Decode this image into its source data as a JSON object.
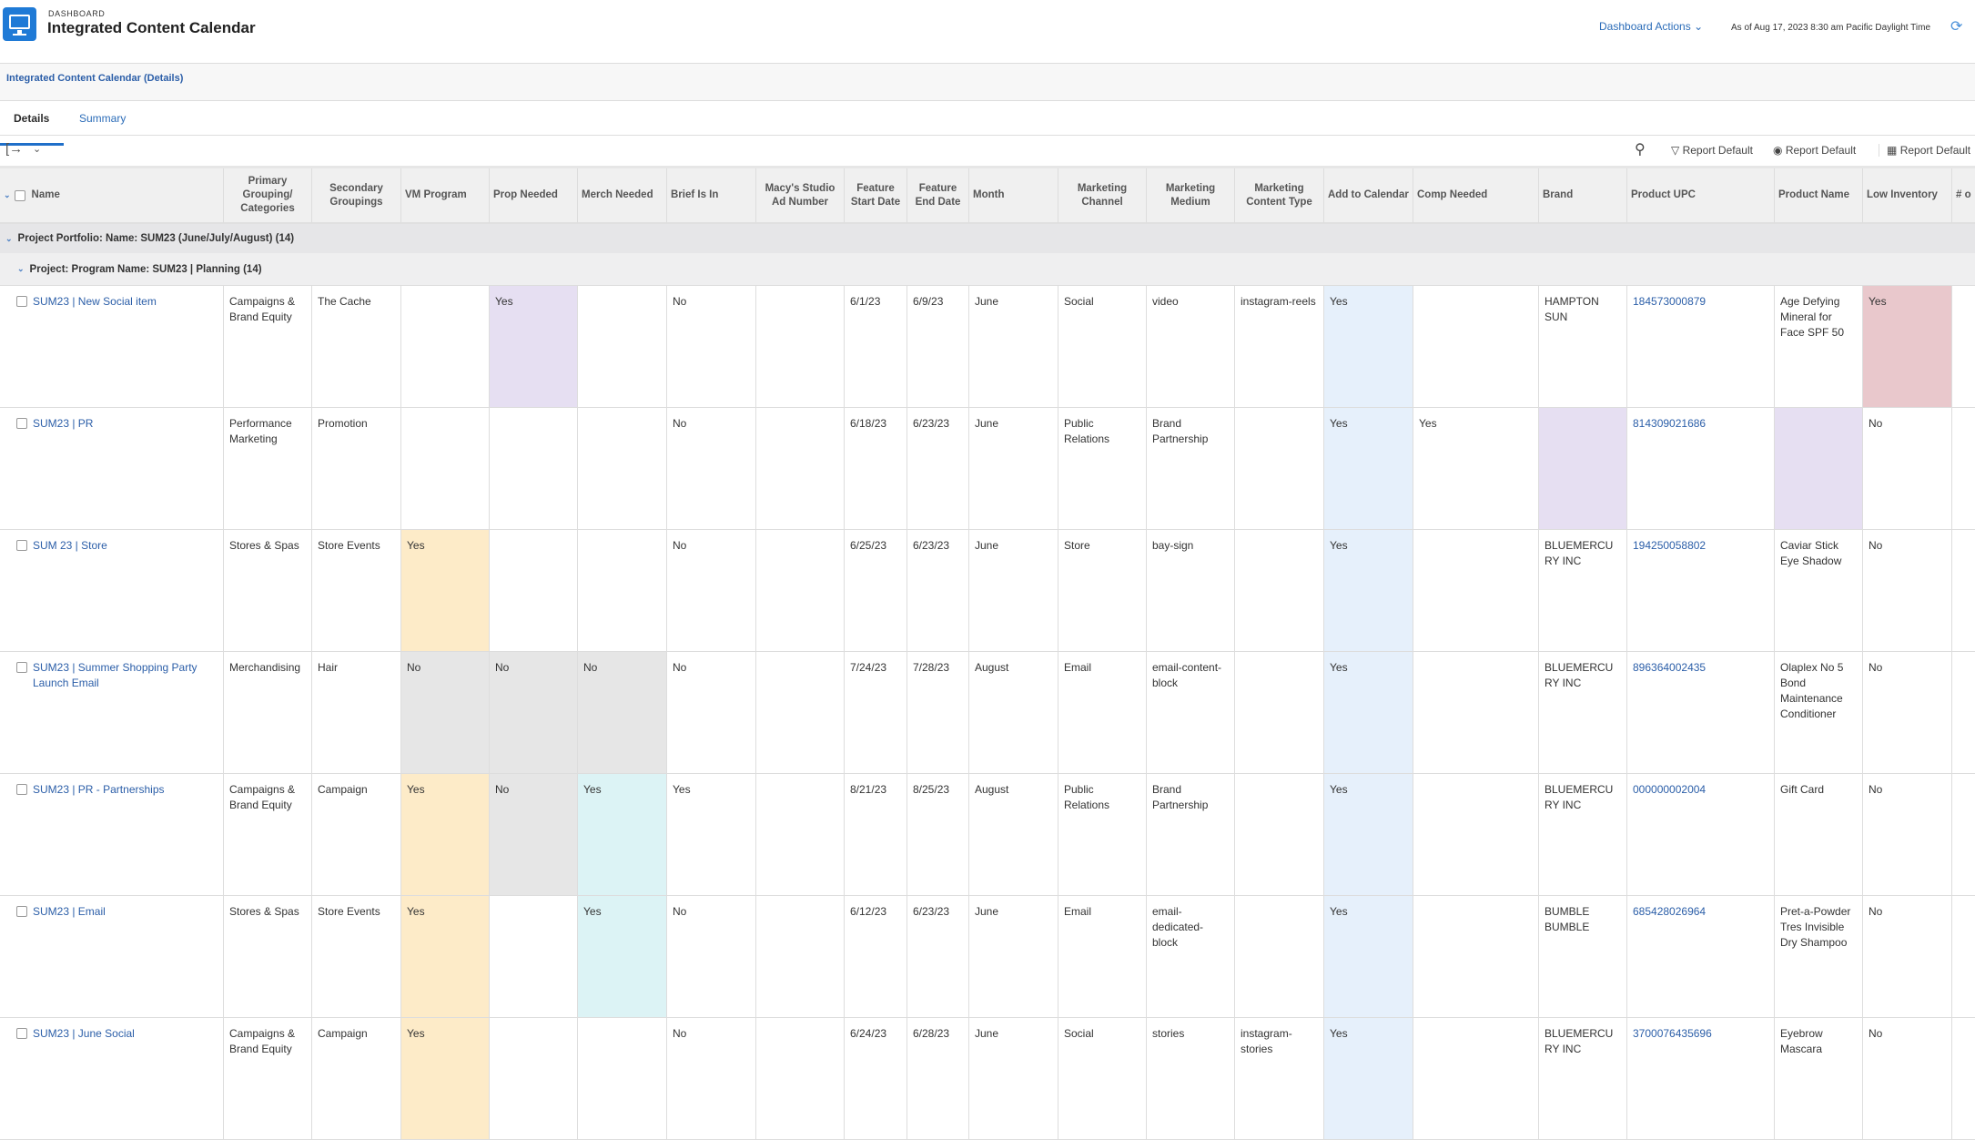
{
  "header": {
    "eyebrow": "DASHBOARD",
    "title": "Integrated Content Calendar",
    "actions_label": "Dashboard Actions",
    "as_of": "As of  Aug 17, 2023 8:30 am Pacific Daylight Time"
  },
  "breadcrumb": "Integrated Content Calendar (Details)",
  "tabs": [
    {
      "label": "Details",
      "active": true
    },
    {
      "label": "Summary",
      "active": false
    }
  ],
  "toolbar": {
    "filter_label": "Report Default",
    "view_label": "Report Default",
    "grouping_label": "Report Default"
  },
  "palette": {
    "purple": "#e6dff2",
    "peach": "#fdebc8",
    "gray": "#e6e6e6",
    "cyan": "#dcf3f5",
    "blue": "#e6f0fb",
    "pink": "#e9c8cc"
  },
  "columns": [
    "Name",
    "Primary Grouping/ Categories",
    "Secondary Groupings",
    "VM Program",
    "Prop Needed",
    "Merch Needed",
    "Brief Is In",
    "Macy's Studio Ad Number",
    "Feature Start Date",
    "Feature End Date",
    "Month",
    "Marketing Channel",
    "Marketing Medium",
    "Marketing Content Type",
    "Add to Calendar",
    "Comp Needed",
    "Brand",
    "Product UPC",
    "Product Name",
    "Low Inventory",
    "# o"
  ],
  "groups": {
    "portfolio": "Project Portfolio: Name: SUM23 (June/July/August) (14)",
    "program": "Project: Program Name: SUM23 | Planning (14)"
  },
  "rows": [
    {
      "cells": [
        "SUM23 | New Social item",
        "Campaigns & Brand Equity",
        "The Cache",
        "",
        "Yes",
        "",
        "No",
        "",
        "6/1/23",
        "6/9/23",
        "June",
        "Social",
        "video",
        "instagram-reels",
        "Yes",
        "",
        "HAMPTON SUN",
        "184573000879",
        "Age Defying Mineral for Face SPF 50",
        "Yes",
        ""
      ],
      "highlights": {
        "4": "purple",
        "14": "blue",
        "19": "pink"
      }
    },
    {
      "cells": [
        "SUM23 | PR",
        "Performance Marketing",
        "Promotion",
        "",
        "",
        "",
        "No",
        "",
        "6/18/23",
        "6/23/23",
        "June",
        "Public Relations",
        "Brand Partnership",
        "",
        "Yes",
        "Yes",
        "",
        "814309021686",
        "",
        "No",
        ""
      ],
      "highlights": {
        "14": "blue",
        "16": "purple",
        "18": "purple"
      }
    },
    {
      "cells": [
        "SUM 23 | Store",
        "Stores & Spas",
        "Store Events",
        "Yes",
        "",
        "",
        "No",
        "",
        "6/25/23",
        "6/23/23",
        "June",
        "Store",
        "bay-sign",
        "",
        "Yes",
        "",
        "BLUEMERCURY  INC",
        "194250058802",
        "Caviar Stick Eye Shadow",
        "No",
        ""
      ],
      "highlights": {
        "3": "peach",
        "14": "blue"
      }
    },
    {
      "cells": [
        "SUM23 | Summer Shopping Party Launch Email",
        "Merchandising",
        "Hair",
        "No",
        "No",
        "No",
        "No",
        "",
        "7/24/23",
        "7/28/23",
        "August",
        "Email",
        "email-content-block",
        "",
        "Yes",
        "",
        "BLUEMERCURY  INC",
        "896364002435",
        "Olaplex No 5 Bond Maintenance Conditioner",
        "No",
        ""
      ],
      "highlights": {
        "3": "gray",
        "4": "gray",
        "5": "gray",
        "14": "blue"
      }
    },
    {
      "cells": [
        "SUM23 | PR - Partnerships",
        "Campaigns & Brand Equity",
        "Campaign",
        "Yes",
        "No",
        "Yes",
        "Yes",
        "",
        "8/21/23",
        "8/25/23",
        "August",
        "Public Relations",
        "Brand Partnership",
        "",
        "Yes",
        "",
        "BLUEMERCURY  INC",
        "000000002004",
        "Gift Card",
        "No",
        ""
      ],
      "highlights": {
        "3": "peach",
        "4": "gray",
        "5": "cyan",
        "14": "blue"
      }
    },
    {
      "cells": [
        "SUM23 | Email",
        "Stores & Spas",
        "Store Events",
        "Yes",
        "",
        "Yes",
        "No",
        "",
        "6/12/23",
        "6/23/23",
        "June",
        "Email",
        "email-dedicated-block",
        "",
        "Yes",
        "",
        "BUMBLE BUMBLE",
        "685428026964",
        "Pret-a-Powder Tres Invisible Dry Shampoo",
        "No",
        ""
      ],
      "highlights": {
        "3": "peach",
        "5": "cyan",
        "14": "blue"
      }
    },
    {
      "cells": [
        "SUM23 | June Social",
        "Campaigns & Brand Equity",
        "Campaign",
        "Yes",
        "",
        "",
        "No",
        "",
        "6/24/23",
        "6/28/23",
        "June",
        "Social",
        "stories",
        "instagram-stories",
        "Yes",
        "",
        "BLUEMERCURY  INC",
        "3700076435696",
        "Eyebrow Mascara",
        "No",
        ""
      ],
      "highlights": {
        "3": "peach",
        "14": "blue"
      }
    }
  ]
}
